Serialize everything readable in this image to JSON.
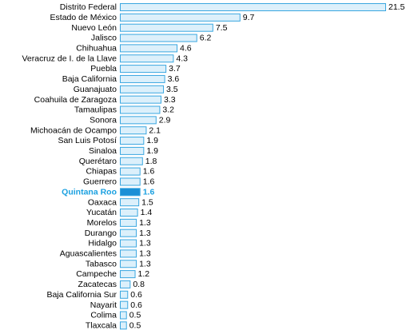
{
  "chart_data": {
    "type": "bar",
    "orientation": "horizontal",
    "categories": [
      "Distrito Federal",
      "Estado de México",
      "Nuevo León",
      "Jalisco",
      "Chihuahua",
      "Veracruz de I. de la Llave",
      "Puebla",
      "Baja California",
      "Guanajuato",
      "Coahuila de Zaragoza",
      "Tamaulipas",
      "Sonora",
      "Michoacán de Ocampo",
      "San Luis Potosí",
      "Sinaloa",
      "Querétaro",
      "Chiapas",
      "Guerrero",
      "Quintana Roo",
      "Oaxaca",
      "Yucatán",
      "Morelos",
      "Durango",
      "Hidalgo",
      "Aguascalientes",
      "Tabasco",
      "Campeche",
      "Zacatecas",
      "Baja California Sur",
      "Nayarit",
      "Colima",
      "Tlaxcala"
    ],
    "values": [
      21.5,
      9.7,
      7.5,
      6.2,
      4.6,
      4.3,
      3.7,
      3.6,
      3.5,
      3.3,
      3.2,
      2.9,
      2.1,
      1.9,
      1.9,
      1.8,
      1.6,
      1.6,
      1.6,
      1.5,
      1.4,
      1.3,
      1.3,
      1.3,
      1.3,
      1.3,
      1.2,
      0.8,
      0.6,
      0.6,
      0.5,
      0.5
    ],
    "value_labels": [
      "21.5",
      "9.7",
      "7.5",
      "6.2",
      "4.6",
      "4.3",
      "3.7",
      "3.6",
      "3.5",
      "3.3",
      "3.2",
      "2.9",
      "2.1",
      "1.9",
      "1.9",
      "1.8",
      "1.6",
      "1.6",
      "1.6",
      "1.5",
      "1.4",
      "1.3",
      "1.3",
      "1.3",
      "1.3",
      "1.3",
      "1.2",
      "0.8",
      "0.6",
      "0.6",
      "0.5",
      "0.5"
    ],
    "highlight": "Quintana Roo",
    "xlim": [
      0,
      21.5
    ],
    "grid": false,
    "colors": {
      "bar_fill": "#dcf0fb",
      "bar_stroke": "#3aa7e0",
      "highlight_fill": "#1a8fd6",
      "highlight_text": "#1aa0e0",
      "text": "#000000"
    }
  }
}
